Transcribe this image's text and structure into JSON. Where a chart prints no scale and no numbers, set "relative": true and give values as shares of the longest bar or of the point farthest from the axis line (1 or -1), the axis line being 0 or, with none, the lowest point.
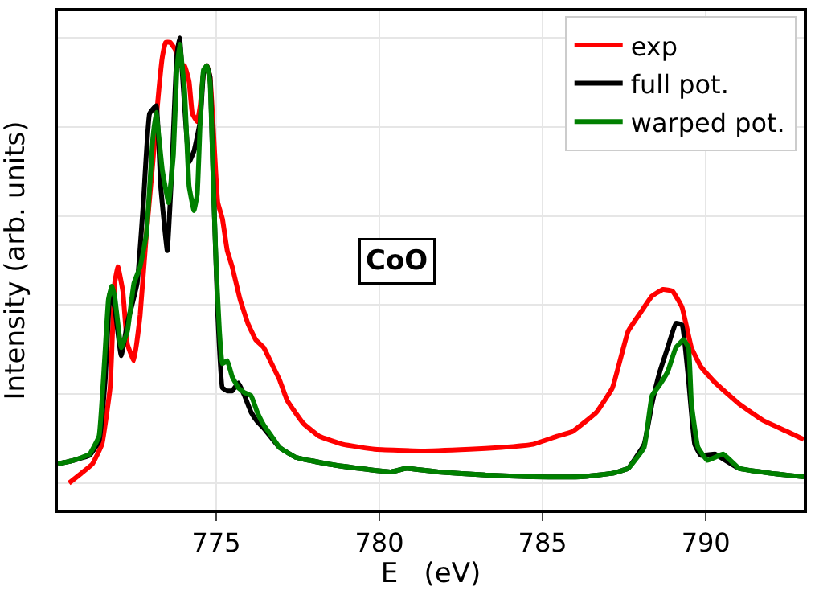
{
  "chart_data": {
    "type": "line",
    "relative": true,
    "xlabel": "E   (eV)",
    "ylabel": "Intensity (arb. units)",
    "annotations": [
      "CoO"
    ],
    "xlim": [
      770.15,
      793.0
    ],
    "xticks": [
      775,
      780,
      785,
      790
    ],
    "grid": true,
    "legend": "top right",
    "line_style": "solid",
    "series": [
      {
        "name": "exp",
        "color": "#ff0000",
        "x": [
          770.49,
          770.87,
          771.21,
          771.5,
          771.75,
          771.89,
          771.99,
          772.14,
          772.28,
          772.48,
          772.67,
          772.86,
          773.06,
          773.2,
          773.35,
          773.45,
          773.59,
          773.74,
          773.88,
          774.03,
          774.17,
          774.27,
          774.42,
          774.51,
          774.61,
          774.71,
          774.81,
          774.9,
          775.05,
          775.19,
          775.34,
          775.49,
          775.73,
          775.97,
          776.21,
          776.46,
          776.7,
          776.94,
          777.18,
          777.67,
          778.16,
          778.88,
          779.85,
          781.31,
          782.77,
          783.74,
          784.71,
          785.44,
          785.92,
          786.65,
          787.14,
          787.62,
          788.01,
          788.35,
          788.69,
          788.98,
          789.27,
          789.56,
          789.85,
          790.29,
          791.02,
          791.75,
          792.48,
          793.0
        ],
        "values": [
          0,
          0.022,
          0.043,
          0.087,
          0.214,
          0.449,
          0.486,
          0.431,
          0.312,
          0.275,
          0.377,
          0.558,
          0.721,
          0.848,
          0.957,
          0.99,
          0.99,
          0.975,
          0.938,
          0.938,
          0.902,
          0.83,
          0.812,
          0.848,
          0.92,
          0.938,
          0.913,
          0.812,
          0.63,
          0.594,
          0.522,
          0.486,
          0.413,
          0.359,
          0.322,
          0.304,
          0.268,
          0.232,
          0.185,
          0.134,
          0.105,
          0.087,
          0.076,
          0.072,
          0.076,
          0.08,
          0.087,
          0.105,
          0.116,
          0.159,
          0.214,
          0.341,
          0.384,
          0.42,
          0.435,
          0.431,
          0.395,
          0.304,
          0.261,
          0.225,
          0.178,
          0.141,
          0.116,
          0.098
        ]
      },
      {
        "name": "full pot.",
        "color": "#000000",
        "x": [
          770.15,
          770.63,
          771.12,
          771.41,
          771.6,
          771.75,
          771.89,
          772.09,
          772.28,
          772.58,
          772.77,
          772.96,
          773.16,
          773.3,
          773.5,
          773.64,
          773.79,
          773.88,
          774.03,
          774.17,
          774.32,
          774.51,
          774.61,
          774.71,
          774.81,
          774.9,
          775.05,
          775.19,
          775.34,
          775.49,
          775.68,
          775.87,
          776.07,
          776.26,
          776.46,
          776.7,
          776.94,
          777.43,
          778.4,
          779.37,
          780.34,
          780.83,
          781.8,
          783.25,
          784.71,
          786.17,
          787.14,
          787.62,
          788.11,
          788.35,
          788.59,
          788.83,
          789.08,
          789.27,
          789.47,
          789.66,
          789.85,
          790.29,
          790.53,
          791.02,
          791.99,
          793.0
        ],
        "values": [
          0.043,
          0.051,
          0.062,
          0.094,
          0.232,
          0.428,
          0.395,
          0.286,
          0.359,
          0.449,
          0.63,
          0.83,
          0.848,
          0.667,
          0.522,
          0.703,
          0.957,
          1.0,
          0.848,
          0.721,
          0.746,
          0.812,
          0.92,
          0.938,
          0.913,
          0.703,
          0.377,
          0.214,
          0.207,
          0.207,
          0.225,
          0.196,
          0.159,
          0.138,
          0.123,
          0.101,
          0.08,
          0.058,
          0.043,
          0.033,
          0.025,
          0.033,
          0.025,
          0.018,
          0.014,
          0.014,
          0.022,
          0.033,
          0.087,
          0.178,
          0.25,
          0.304,
          0.359,
          0.355,
          0.232,
          0.087,
          0.062,
          0.065,
          0.054,
          0.033,
          0.022,
          0.014
        ]
      },
      {
        "name": "warped pot.",
        "color": "#008000",
        "x": [
          770.15,
          770.63,
          771.12,
          771.41,
          771.7,
          771.8,
          771.89,
          772.09,
          772.28,
          772.48,
          772.67,
          772.86,
          773.06,
          773.16,
          773.35,
          773.54,
          773.69,
          773.79,
          773.88,
          774.03,
          774.17,
          774.32,
          774.42,
          774.51,
          774.61,
          774.71,
          774.81,
          774.9,
          775.0,
          775.1,
          775.19,
          775.34,
          775.49,
          775.68,
          775.87,
          776.07,
          776.26,
          776.46,
          776.7,
          776.94,
          777.43,
          778.4,
          779.37,
          780.34,
          780.83,
          781.8,
          783.25,
          784.71,
          786.17,
          787.14,
          787.62,
          788.11,
          788.35,
          788.59,
          788.83,
          789.08,
          789.32,
          789.47,
          789.56,
          789.76,
          790.05,
          790.53,
          791.02,
          791.99,
          793.0
        ],
        "values": [
          0.043,
          0.051,
          0.065,
          0.105,
          0.413,
          0.442,
          0.42,
          0.304,
          0.341,
          0.449,
          0.486,
          0.558,
          0.775,
          0.833,
          0.703,
          0.63,
          0.739,
          0.92,
          0.986,
          0.884,
          0.667,
          0.612,
          0.649,
          0.812,
          0.928,
          0.938,
          0.902,
          0.703,
          0.486,
          0.341,
          0.268,
          0.275,
          0.239,
          0.214,
          0.203,
          0.196,
          0.159,
          0.13,
          0.105,
          0.08,
          0.058,
          0.043,
          0.033,
          0.025,
          0.033,
          0.025,
          0.018,
          0.014,
          0.014,
          0.022,
          0.033,
          0.08,
          0.196,
          0.221,
          0.25,
          0.304,
          0.322,
          0.304,
          0.178,
          0.08,
          0.051,
          0.065,
          0.033,
          0.022,
          0.014
        ]
      }
    ]
  }
}
